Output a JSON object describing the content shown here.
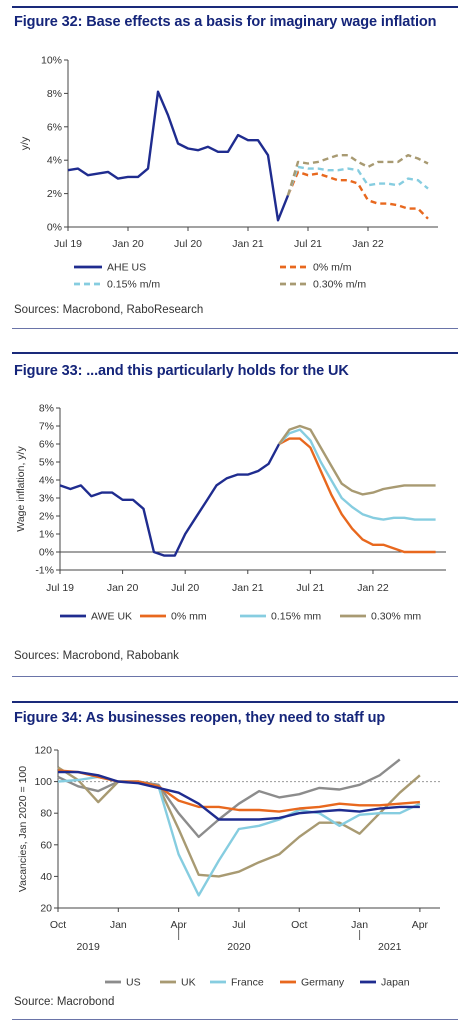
{
  "figures": [
    {
      "title": "Figure 32: Base effects as a basis for imaginary wage inflation",
      "source": "Sources: Macrobond, RaboResearch"
    },
    {
      "title": "Figure 33: ...and this particularly holds for the UK",
      "source": "Sources: Macrobond, Rabobank"
    },
    {
      "title": "Figure 34: As businesses reopen, they need to staff up",
      "source": "Source: Macrobond"
    }
  ],
  "chart_data": [
    {
      "type": "line",
      "ylabel": "y/y",
      "xlabel": "",
      "ylim": [
        0,
        10
      ],
      "yticks": [
        0,
        2,
        4,
        6,
        8,
        10
      ],
      "ytick_labels": [
        "0%",
        "2%",
        "4%",
        "6%",
        "8%",
        "10%"
      ],
      "xlim": [
        0,
        37
      ],
      "xticks": [
        0,
        6,
        12,
        18,
        24,
        30
      ],
      "xtick_labels": [
        "Jul 19",
        "Jan 20",
        "Jul 20",
        "Jan 21",
        "Jul 21",
        "Jan 22"
      ],
      "grid": false,
      "legend": "bottom",
      "series": [
        {
          "name": "AHE US",
          "color": "#1f2c8f",
          "dash": "solid",
          "x": [
            0,
            1,
            2,
            3,
            4,
            5,
            6,
            7,
            8,
            9,
            10,
            11,
            12,
            13,
            14,
            15,
            16,
            17,
            18,
            19,
            20,
            21,
            22
          ],
          "values": [
            3.4,
            3.5,
            3.1,
            3.2,
            3.3,
            2.9,
            3.0,
            3.0,
            3.5,
            8.1,
            6.7,
            5.0,
            4.7,
            4.6,
            4.8,
            4.5,
            4.5,
            5.5,
            5.2,
            5.2,
            4.3,
            0.4,
            1.9
          ]
        },
        {
          "name": "0% m/m",
          "color": "#e8681e",
          "dash": "dashed",
          "x": [
            22,
            23,
            24,
            25,
            26,
            27,
            28,
            29,
            30,
            31,
            32,
            33,
            34,
            35,
            36
          ],
          "values": [
            1.9,
            3.3,
            3.1,
            3.2,
            3.0,
            2.8,
            2.8,
            2.6,
            1.6,
            1.4,
            1.4,
            1.3,
            1.1,
            1.1,
            0.5
          ]
        },
        {
          "name": "0.15% m/m",
          "color": "#86cde0",
          "dash": "dashed",
          "x": [
            22,
            23,
            24,
            25,
            26,
            27,
            28,
            29,
            30,
            31,
            32,
            33,
            34,
            35,
            36
          ],
          "values": [
            1.9,
            3.6,
            3.5,
            3.5,
            3.4,
            3.4,
            3.5,
            3.4,
            2.5,
            2.6,
            2.6,
            2.5,
            2.9,
            2.8,
            2.3
          ]
        },
        {
          "name": "0.30% m/m",
          "color": "#a89a72",
          "dash": "dashed",
          "x": [
            22,
            23,
            24,
            25,
            26,
            27,
            28,
            29,
            30,
            31,
            32,
            33,
            34,
            35,
            36
          ],
          "values": [
            1.9,
            3.9,
            3.8,
            3.9,
            4.1,
            4.3,
            4.3,
            3.9,
            3.6,
            3.9,
            3.9,
            3.9,
            4.3,
            4.1,
            3.8
          ]
        }
      ]
    },
    {
      "type": "line",
      "ylabel": "Wage inflation, y/y",
      "xlabel": "",
      "ylim": [
        -1,
        8
      ],
      "yticks": [
        -1,
        0,
        1,
        2,
        3,
        4,
        5,
        6,
        7,
        8
      ],
      "ytick_labels": [
        "-1%",
        "0%",
        "1%",
        "2%",
        "3%",
        "4%",
        "5%",
        "6%",
        "7%",
        "8%"
      ],
      "xlim": [
        0,
        37
      ],
      "xticks": [
        0,
        6,
        12,
        18,
        24,
        30
      ],
      "xtick_labels": [
        "Jul 19",
        "Jan 20",
        "Jul 20",
        "Jan 21",
        "Jul 21",
        "Jan 22"
      ],
      "grid": false,
      "legend": "bottom",
      "series": [
        {
          "name": "AWE UK",
          "color": "#1f2c8f",
          "dash": "solid",
          "x": [
            0,
            1,
            2,
            3,
            4,
            5,
            6,
            7,
            8,
            9,
            10,
            11,
            12,
            13,
            14,
            15,
            16,
            17,
            18,
            19,
            20,
            21
          ],
          "values": [
            3.7,
            3.5,
            3.7,
            3.1,
            3.3,
            3.3,
            2.9,
            2.9,
            2.4,
            0.0,
            -0.2,
            -0.2,
            1.0,
            1.9,
            2.8,
            3.7,
            4.1,
            4.3,
            4.3,
            4.5,
            4.9,
            6.0
          ]
        },
        {
          "name": "0% mm",
          "color": "#e8681e",
          "dash": "solid",
          "x": [
            21,
            22,
            23,
            24,
            25,
            26,
            27,
            28,
            29,
            30,
            31,
            32,
            33,
            34,
            35,
            36
          ],
          "values": [
            6.0,
            6.3,
            6.3,
            5.8,
            4.5,
            3.2,
            2.1,
            1.3,
            0.7,
            0.4,
            0.4,
            0.2,
            0.0,
            0.0,
            0.0,
            0.0
          ]
        },
        {
          "name": "0.15% mm",
          "color": "#86cde0",
          "dash": "solid",
          "x": [
            21,
            22,
            23,
            24,
            25,
            26,
            27,
            28,
            29,
            30,
            31,
            32,
            33,
            34,
            35,
            36
          ],
          "values": [
            6.0,
            6.6,
            6.8,
            6.2,
            5.0,
            4.0,
            3.0,
            2.5,
            2.1,
            1.9,
            1.8,
            1.9,
            1.9,
            1.8,
            1.8,
            1.8
          ]
        },
        {
          "name": "0.30% mm",
          "color": "#a89a72",
          "dash": "solid",
          "x": [
            21,
            22,
            23,
            24,
            25,
            26,
            27,
            28,
            29,
            30,
            31,
            32,
            33,
            34,
            35,
            36
          ],
          "values": [
            6.0,
            6.8,
            7.0,
            6.8,
            5.8,
            4.8,
            3.8,
            3.4,
            3.2,
            3.3,
            3.5,
            3.6,
            3.7,
            3.7,
            3.7,
            3.7
          ]
        }
      ]
    },
    {
      "type": "line",
      "ylabel": "Vacancies, Jan 2020 = 100",
      "xlabel": "",
      "ylim": [
        20,
        120
      ],
      "yticks": [
        20,
        40,
        60,
        80,
        100,
        120
      ],
      "ytick_labels": [
        "20",
        "40",
        "60",
        "80",
        "100",
        "120"
      ],
      "xlim": [
        0,
        19
      ],
      "xticks": [
        0,
        3,
        6,
        9,
        12,
        15,
        18
      ],
      "xtick_labels": [
        "Oct",
        "Jan",
        "Apr",
        "Jul",
        "Oct",
        "Jan",
        "Apr"
      ],
      "year_labels": [
        {
          "x": 1.5,
          "label": "2019"
        },
        {
          "x": 9,
          "label": "2020"
        },
        {
          "x": 16.5,
          "label": "2021"
        }
      ],
      "reference_line": 100,
      "grid": false,
      "legend": "bottom",
      "series": [
        {
          "name": "US",
          "color": "#8c8c8c",
          "x": [
            0,
            1,
            2,
            3,
            4,
            5,
            6,
            7,
            8,
            9,
            10,
            11,
            12,
            13,
            14,
            15,
            16,
            17
          ],
          "values": [
            103,
            97,
            94,
            100,
            100,
            98,
            80,
            65,
            76,
            86,
            94,
            90,
            92,
            96,
            95,
            98,
            104,
            114
          ]
        },
        {
          "name": "UK",
          "color": "#a89a72",
          "x": [
            0,
            1,
            2,
            3,
            4,
            5,
            6,
            7,
            8,
            9,
            10,
            11,
            12,
            13,
            14,
            15,
            16,
            17,
            18
          ],
          "values": [
            109,
            101,
            87,
            100,
            100,
            97,
            70,
            41,
            40,
            43,
            49,
            54,
            65,
            74,
            74,
            67,
            80,
            93,
            104
          ]
        },
        {
          "name": "France",
          "color": "#86cde0",
          "x": [
            0,
            1,
            2,
            3,
            4,
            5,
            6,
            7,
            8,
            9,
            10,
            11,
            12,
            13,
            14,
            15,
            16,
            17,
            18
          ],
          "values": [
            100,
            101,
            103,
            100,
            100,
            97,
            54,
            28,
            50,
            70,
            72,
            76,
            82,
            80,
            72,
            79,
            80,
            80,
            86
          ]
        },
        {
          "name": "Germany",
          "color": "#e8681e",
          "x": [
            0,
            1,
            2,
            3,
            4,
            5,
            6,
            7,
            8,
            9,
            10,
            11,
            12,
            13,
            14,
            15,
            16,
            17,
            18
          ],
          "values": [
            107,
            106,
            103,
            100,
            100,
            97,
            88,
            84,
            84,
            82,
            82,
            81,
            83,
            84,
            86,
            85,
            85,
            86,
            87
          ]
        },
        {
          "name": "Japan",
          "color": "#1f2c8f",
          "x": [
            0,
            1,
            2,
            3,
            4,
            5,
            6,
            7,
            8,
            9,
            10,
            11,
            12,
            13,
            14,
            15,
            16,
            17,
            18
          ],
          "values": [
            106,
            106,
            104,
            100,
            99,
            96,
            93,
            86,
            76,
            76,
            76,
            77,
            80,
            81,
            82,
            81,
            83,
            84,
            84
          ]
        }
      ]
    }
  ]
}
